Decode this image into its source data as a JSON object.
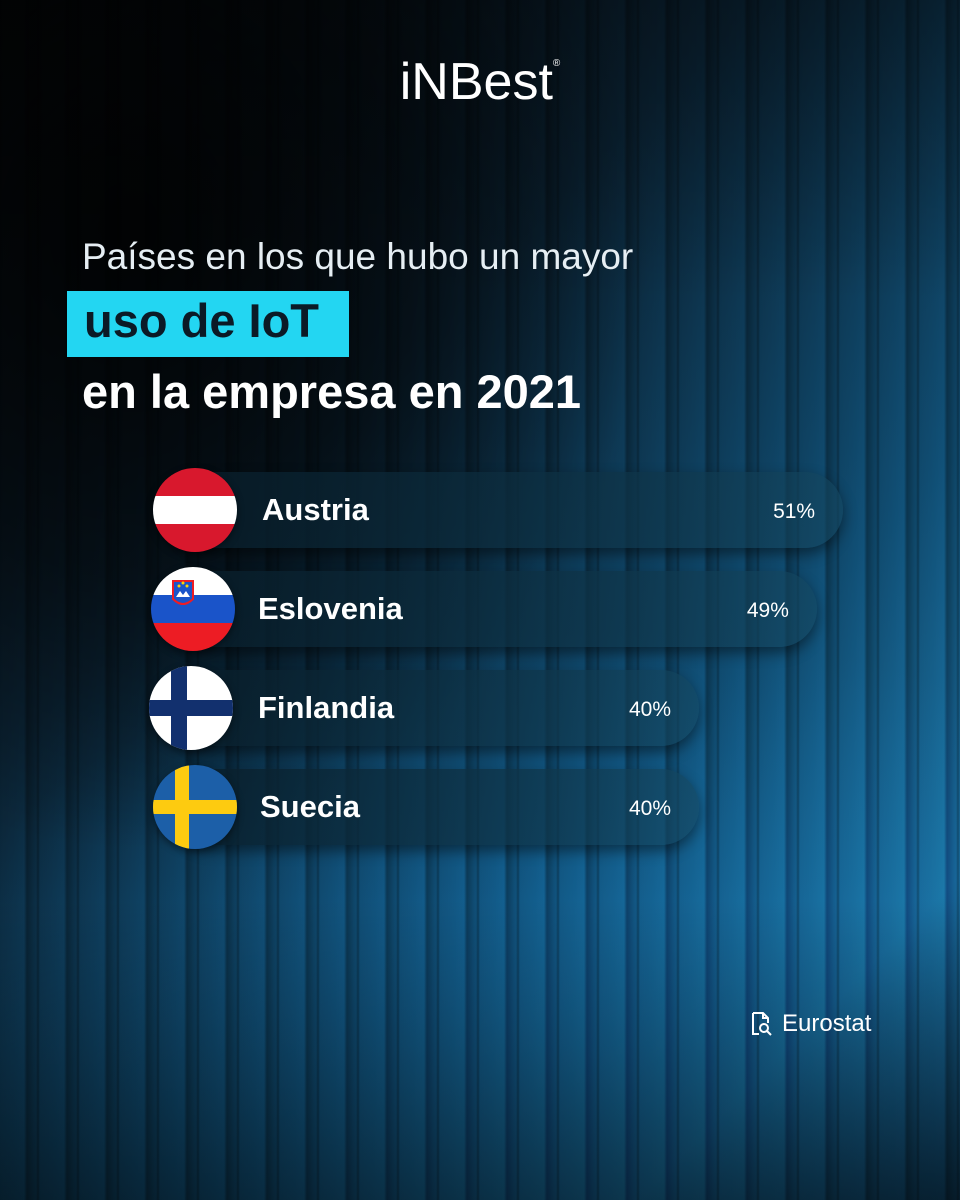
{
  "brand": {
    "name": "iNBest",
    "mark": "®"
  },
  "title": {
    "line1": "Países en los que hubo un mayor",
    "highlight": "uso de IoT",
    "line3": "en la empresa en 2021"
  },
  "source": {
    "label": "Eurostat",
    "icon": "document-search-icon"
  },
  "colors": {
    "accent": "#23d6f2"
  },
  "chart_data": {
    "type": "bar",
    "orientation": "horizontal",
    "title": "Países en los que hubo un mayor uso de IoT en la empresa en 2021",
    "categories": [
      "Austria",
      "Eslovenia",
      "Finlandia",
      "Suecia"
    ],
    "values": [
      51,
      49,
      40,
      40
    ],
    "value_labels": [
      "51%",
      "49%",
      "40%",
      "40%"
    ],
    "flags": [
      "austria-flag-icon",
      "slovenia-flag-icon",
      "finland-flag-icon",
      "sweden-flag-icon"
    ],
    "unit": "%",
    "grid": false,
    "legend": "none"
  }
}
